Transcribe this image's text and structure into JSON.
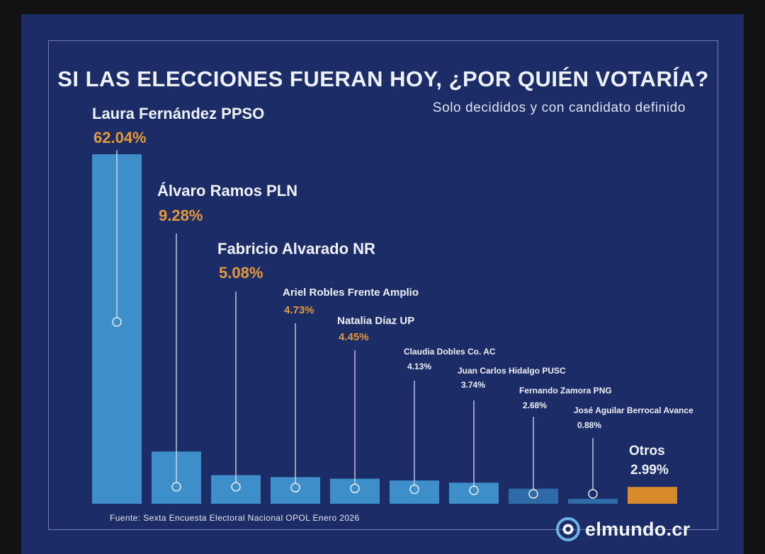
{
  "chart_data": {
    "type": "bar",
    "title": "SI LAS ELECCIONES FUERAN HOY, ¿POR QUIÉN VOTARÍA?",
    "subtitle": "Solo decididos y con candidato definido",
    "xlabel": "",
    "ylabel": "",
    "ylim": [
      0,
      62.04
    ],
    "grid": false,
    "categories": [
      "Laura Fernández PPSO",
      "Álvaro Ramos PLN",
      "Fabricio Alvarado NR",
      "Ariel Robles Frente Amplio",
      "Natalia Díaz UP",
      "Claudia Dobles Co. AC",
      "Juan Carlos Hidalgo PUSC",
      "Fernando Zamora PNG",
      "José Aguilar Berrocal Avance",
      "Otros"
    ],
    "values": [
      62.04,
      9.28,
      5.08,
      4.73,
      4.45,
      4.13,
      3.74,
      2.68,
      0.88,
      2.99
    ],
    "value_labels": [
      "62.04%",
      "9.28%",
      "5.08%",
      "4.73%",
      "4.45%",
      "4.13%",
      "3.74%",
      "2.68%",
      "0.88%",
      "2.99%"
    ],
    "colors": {
      "bar": "#3d8ec9",
      "bar_low": "#2d6aa6",
      "bar_otros": "#d98a2b",
      "value_label": "#e49a3c",
      "label": "#eef1f8",
      "leader": "#e9ecf3"
    }
  },
  "footer": {
    "source": "Fuente: Sexta Encuesta Electoral Nacional OPOL Enero 2026",
    "logo_text": "elmundo.cr",
    "logo_icon": "elmundo-logo-icon"
  }
}
